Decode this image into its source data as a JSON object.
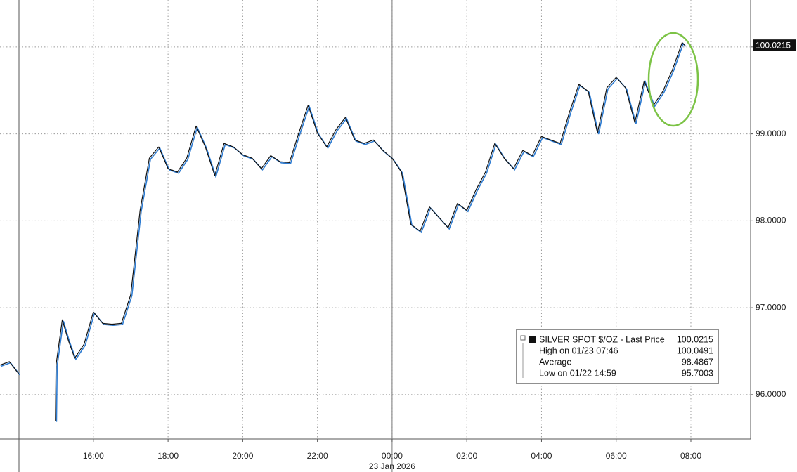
{
  "chart_data": {
    "type": "line",
    "x": [
      "2026-01-22T13:30",
      "2026-01-22T13:45",
      "2026-01-22T14:00",
      "2026-01-22T14:30",
      "2026-01-22T14:59",
      "2026-01-22T15:00",
      "2026-01-22T15:10",
      "2026-01-22T15:20",
      "2026-01-22T15:30",
      "2026-01-22T15:45",
      "2026-01-22T16:00",
      "2026-01-22T16:15",
      "2026-01-22T16:30",
      "2026-01-22T16:45",
      "2026-01-22T17:00",
      "2026-01-22T17:15",
      "2026-01-22T17:30",
      "2026-01-22T17:45",
      "2026-01-22T18:00",
      "2026-01-22T18:15",
      "2026-01-22T18:30",
      "2026-01-22T18:45",
      "2026-01-22T19:00",
      "2026-01-22T19:15",
      "2026-01-22T19:30",
      "2026-01-22T19:45",
      "2026-01-22T20:00",
      "2026-01-22T20:15",
      "2026-01-22T20:30",
      "2026-01-22T20:45",
      "2026-01-22T21:00",
      "2026-01-22T21:15",
      "2026-01-22T21:30",
      "2026-01-22T21:45",
      "2026-01-22T22:00",
      "2026-01-22T22:15",
      "2026-01-22T22:30",
      "2026-01-22T22:45",
      "2026-01-22T23:00",
      "2026-01-22T23:15",
      "2026-01-22T23:30",
      "2026-01-22T23:45",
      "2026-01-23T00:00",
      "2026-01-23T00:15",
      "2026-01-23T00:30",
      "2026-01-23T00:45",
      "2026-01-23T01:00",
      "2026-01-23T01:15",
      "2026-01-23T01:30",
      "2026-01-23T01:45",
      "2026-01-23T02:00",
      "2026-01-23T02:15",
      "2026-01-23T02:30",
      "2026-01-23T02:45",
      "2026-01-23T03:00",
      "2026-01-23T03:15",
      "2026-01-23T03:30",
      "2026-01-23T03:45",
      "2026-01-23T04:00",
      "2026-01-23T04:15",
      "2026-01-23T04:30",
      "2026-01-23T04:45",
      "2026-01-23T05:00",
      "2026-01-23T05:15",
      "2026-01-23T05:30",
      "2026-01-23T05:45",
      "2026-01-23T06:00",
      "2026-01-23T06:15",
      "2026-01-23T06:30",
      "2026-01-23T06:45",
      "2026-01-23T07:00",
      "2026-01-23T07:15",
      "2026-01-23T07:30",
      "2026-01-23T07:46",
      "2026-01-23T07:50"
    ],
    "series": [
      {
        "name": "SILVER SPOT $/OZ - Last Price",
        "color": "#111111",
        "highlight_color": "#2d7bd1",
        "values": [
          96.34,
          96.38,
          96.24,
          null,
          95.7,
          96.34,
          96.86,
          96.62,
          96.42,
          96.58,
          96.95,
          96.82,
          96.81,
          96.82,
          97.15,
          98.12,
          98.72,
          98.85,
          98.6,
          98.56,
          98.72,
          99.09,
          98.85,
          98.52,
          98.89,
          98.85,
          98.76,
          98.72,
          98.6,
          98.75,
          98.68,
          98.67,
          99.01,
          99.33,
          99.01,
          98.85,
          99.05,
          99.19,
          98.93,
          98.89,
          98.93,
          98.81,
          98.72,
          98.56,
          97.96,
          97.88,
          98.16,
          98.04,
          97.92,
          98.2,
          98.12,
          98.36,
          98.56,
          98.89,
          98.72,
          98.6,
          98.81,
          98.75,
          98.97,
          98.93,
          98.89,
          99.25,
          99.57,
          99.49,
          99.01,
          99.53,
          99.65,
          99.53,
          99.13,
          99.61,
          99.33,
          99.49,
          99.73,
          100.05,
          100.02
        ]
      }
    ],
    "last_price": 100.0215,
    "legend": {
      "title": "SILVER SPOT $/OZ - Last Price",
      "value": 100.0215,
      "rows": [
        {
          "label": "High on 01/23 07:46",
          "value": 100.0491
        },
        {
          "label": "Average",
          "value": 98.4867
        },
        {
          "label": "Low on 01/22 14:59",
          "value": 95.7003
        }
      ]
    },
    "xlim": [
      "2026-01-22T13:30",
      "2026-01-23T09:36"
    ],
    "xticks": [
      {
        "value": "2026-01-22T16:00",
        "label": "16:00"
      },
      {
        "value": "2026-01-22T18:00",
        "label": "18:00"
      },
      {
        "value": "2026-01-22T20:00",
        "label": "20:00"
      },
      {
        "value": "2026-01-22T22:00",
        "label": "22:00"
      },
      {
        "value": "2026-01-23T00:00",
        "label": "00:00"
      },
      {
        "value": "2026-01-23T02:00",
        "label": "02:00"
      },
      {
        "value": "2026-01-23T04:00",
        "label": "04:00"
      },
      {
        "value": "2026-01-23T06:00",
        "label": "06:00"
      },
      {
        "value": "2026-01-23T08:00",
        "label": "08:00"
      }
    ],
    "x_date_label": {
      "value": "2026-01-23T00:00",
      "label": "23 Jan 2026"
    },
    "ylim": [
      95.49,
      100.54
    ],
    "yticks": [
      {
        "value": 96,
        "label": "96.0000"
      },
      {
        "value": 97,
        "label": "97.0000"
      },
      {
        "value": 98,
        "label": "98.0000"
      },
      {
        "value": 99,
        "label": "99.0000"
      },
      {
        "value": 100,
        "label": "100.0000"
      }
    ],
    "grid": true
  }
}
